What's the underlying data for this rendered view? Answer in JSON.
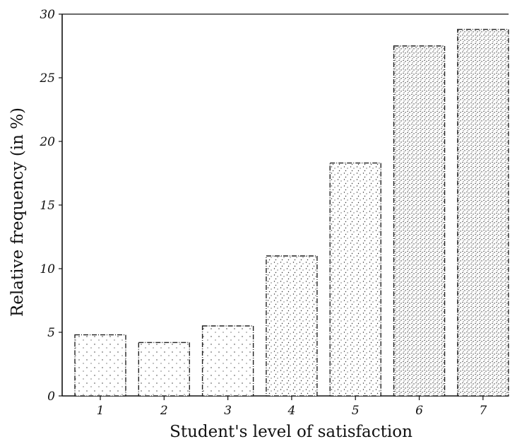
{
  "chart_data": {
    "type": "bar",
    "categories": [
      "1",
      "2",
      "3",
      "4",
      "5",
      "6",
      "7"
    ],
    "values": [
      4.8,
      4.2,
      5.5,
      11.0,
      18.3,
      27.5,
      28.8
    ],
    "ylim": [
      0,
      30
    ],
    "yticks": [
      "0",
      "5",
      "10",
      "15",
      "20",
      "25",
      "30"
    ],
    "xlabel": "Student's level of satisfaction",
    "ylabel": "Relative frequency (in %)",
    "grid": false,
    "legend": "none",
    "bar_fill": "stippled grey dots",
    "colors": {
      "ink": "#222222",
      "background": "#ffffff"
    }
  }
}
